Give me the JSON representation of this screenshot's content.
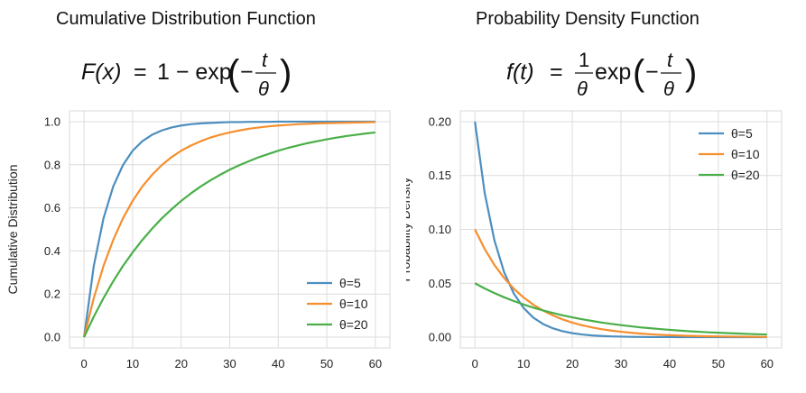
{
  "chart_data": [
    {
      "type": "line",
      "title": "Cumulative Distribution Function",
      "formula": {
        "lhs": "F(x)",
        "rhs": "1 − exp",
        "num": "t",
        "den": "θ"
      },
      "xlabel": "",
      "ylabel": "Cumulative Distribution",
      "xlim": [
        -3,
        63
      ],
      "ylim": [
        -0.05,
        1.05
      ],
      "xticks": [
        "0",
        "10",
        "20",
        "30",
        "40",
        "50",
        "60"
      ],
      "yticks": [
        "0.0",
        "0.2",
        "0.4",
        "0.6",
        "0.8",
        "1.0"
      ],
      "grid": true,
      "legend": "lower-right",
      "x": [
        0,
        2,
        4,
        6,
        8,
        10,
        12,
        14,
        16,
        18,
        20,
        22,
        24,
        26,
        28,
        30,
        32,
        34,
        36,
        38,
        40,
        42,
        44,
        46,
        48,
        50,
        52,
        54,
        56,
        58,
        60
      ],
      "series": [
        {
          "name": "θ=5",
          "color": "#4c8ebf",
          "values": [
            0.0,
            0.33,
            0.551,
            0.699,
            0.798,
            0.865,
            0.909,
            0.939,
            0.959,
            0.973,
            0.982,
            0.988,
            0.992,
            0.994,
            0.996,
            0.998,
            0.998,
            0.999,
            0.999,
            0.999,
            1.0,
            1.0,
            1.0,
            1.0,
            1.0,
            1.0,
            1.0,
            1.0,
            1.0,
            1.0,
            1.0
          ]
        },
        {
          "name": "θ=10",
          "color": "#f58f2e",
          "values": [
            0.0,
            0.181,
            0.33,
            0.451,
            0.551,
            0.632,
            0.699,
            0.753,
            0.798,
            0.835,
            0.865,
            0.889,
            0.909,
            0.926,
            0.939,
            0.95,
            0.959,
            0.967,
            0.973,
            0.978,
            0.982,
            0.985,
            0.988,
            0.99,
            0.992,
            0.993,
            0.994,
            0.995,
            0.996,
            0.997,
            0.998
          ]
        },
        {
          "name": "θ=20",
          "color": "#4aaf48",
          "values": [
            0.0,
            0.095,
            0.181,
            0.259,
            0.33,
            0.393,
            0.451,
            0.503,
            0.551,
            0.593,
            0.632,
            0.667,
            0.699,
            0.727,
            0.753,
            0.777,
            0.798,
            0.817,
            0.835,
            0.85,
            0.865,
            0.878,
            0.889,
            0.9,
            0.909,
            0.918,
            0.926,
            0.933,
            0.939,
            0.945,
            0.95
          ]
        }
      ]
    },
    {
      "type": "line",
      "title": "Probability Density Function",
      "formula": {
        "lhs": "f(t)",
        "coef_num": "1",
        "coef_den": "θ",
        "rhs": "exp",
        "num": "t",
        "den": "θ"
      },
      "xlabel": "",
      "ylabel": "Probability Density",
      "xlim": [
        -3,
        63
      ],
      "ylim": [
        -0.01,
        0.21
      ],
      "xticks": [
        "0",
        "10",
        "20",
        "30",
        "40",
        "50",
        "60"
      ],
      "yticks": [
        "0.00",
        "0.05",
        "0.10",
        "0.15",
        "0.20"
      ],
      "grid": true,
      "legend": "upper-right",
      "x": [
        0,
        2,
        4,
        6,
        8,
        10,
        12,
        14,
        16,
        18,
        20,
        22,
        24,
        26,
        28,
        30,
        32,
        34,
        36,
        38,
        40,
        42,
        44,
        46,
        48,
        50,
        52,
        54,
        56,
        58,
        60
      ],
      "series": [
        {
          "name": "θ=5",
          "color": "#4c8ebf",
          "values": [
            0.2,
            0.134,
            0.0899,
            0.0602,
            0.0404,
            0.0271,
            0.0181,
            0.0122,
            0.0082,
            0.0055,
            0.0037,
            0.0025,
            0.0016,
            0.0011,
            0.0007,
            0.0005,
            0.0003,
            0.0002,
            0.0001,
            0.0001,
            0.0001,
            0.0,
            0.0,
            0.0,
            0.0,
            0.0,
            0.0,
            0.0,
            0.0,
            0.0,
            0.0
          ]
        },
        {
          "name": "θ=10",
          "color": "#f58f2e",
          "values": [
            0.1,
            0.0819,
            0.067,
            0.0549,
            0.0449,
            0.0368,
            0.0301,
            0.0247,
            0.0202,
            0.0165,
            0.0135,
            0.0111,
            0.0091,
            0.0074,
            0.0061,
            0.005,
            0.0041,
            0.0033,
            0.0027,
            0.0022,
            0.0018,
            0.0015,
            0.0012,
            0.001,
            0.0008,
            0.0007,
            0.0006,
            0.0005,
            0.0004,
            0.0003,
            0.0002
          ]
        },
        {
          "name": "θ=20",
          "color": "#4aaf48",
          "values": [
            0.05,
            0.0452,
            0.0409,
            0.037,
            0.0335,
            0.0303,
            0.0274,
            0.0248,
            0.0225,
            0.0203,
            0.0184,
            0.0166,
            0.0151,
            0.0136,
            0.0123,
            0.0112,
            0.0101,
            0.0091,
            0.0083,
            0.0075,
            0.0068,
            0.0061,
            0.0055,
            0.005,
            0.0045,
            0.0041,
            0.0037,
            0.0034,
            0.003,
            0.0027,
            0.0025
          ]
        }
      ]
    }
  ]
}
